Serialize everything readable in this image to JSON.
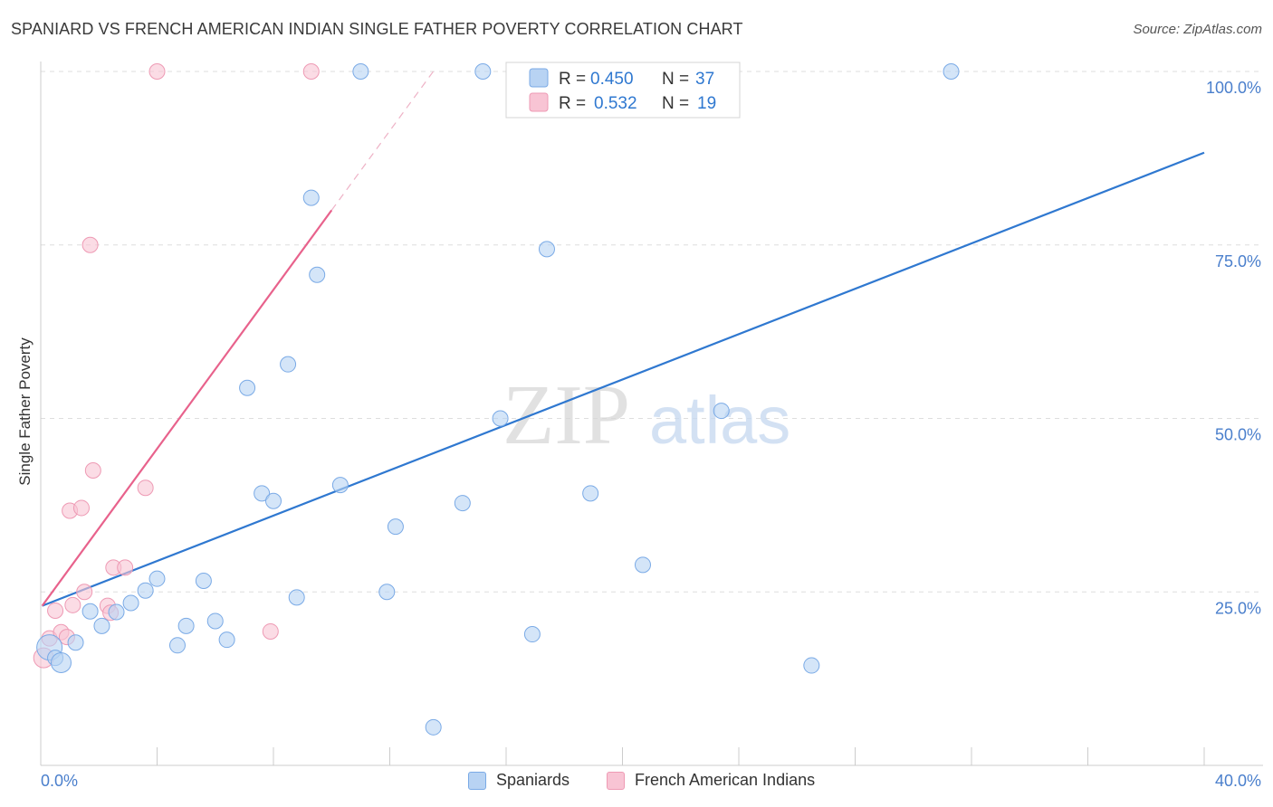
{
  "header": {
    "title": "SPANIARD VS FRENCH AMERICAN INDIAN SINGLE FATHER POVERTY CORRELATION CHART",
    "source": "Source: ZipAtlas.com"
  },
  "watermark": {
    "zip": "ZIP",
    "atlas": "atlas"
  },
  "colors": {
    "blue_fill": "#b8d3f3",
    "blue_stroke": "#7aaae6",
    "blue_line": "#2f78d0",
    "pink_fill": "#f8c4d4",
    "pink_stroke": "#ee9ab4",
    "pink_line": "#e8628c",
    "axis_text": "#4a7fcc",
    "grid": "#dddddd"
  },
  "legend_stats": [
    {
      "r_label": "R = ",
      "r_value": "0.450",
      "n_label": "N = ",
      "n_value": "37"
    },
    {
      "r_label": "R = ",
      "r_value": "0.532",
      "n_label": "N = ",
      "n_value": "19"
    }
  ],
  "chart_data": {
    "type": "scatter",
    "title": "SPANIARD VS FRENCH AMERICAN INDIAN SINGLE FATHER POVERTY CORRELATION CHART",
    "xlabel": "",
    "ylabel": "Single Father Poverty",
    "xlim": [
      0,
      40
    ],
    "ylim": [
      0,
      105
    ],
    "x_tick_labels": [
      "0.0%",
      "40.0%"
    ],
    "y_ticks": [
      25,
      50,
      75,
      100
    ],
    "y_tick_labels": [
      "25.0%",
      "50.0%",
      "75.0%",
      "100.0%"
    ],
    "grid": true,
    "legend_position": "top-center",
    "series": [
      {
        "name": "Spaniards",
        "color": "#b8d3f3",
        "points": [
          [
            0.3,
            17.0
          ],
          [
            0.5,
            15.5
          ],
          [
            0.7,
            14.8
          ],
          [
            1.2,
            17.7
          ],
          [
            1.7,
            22.2
          ],
          [
            2.1,
            20.1
          ],
          [
            2.6,
            22.1
          ],
          [
            3.1,
            23.4
          ],
          [
            3.6,
            25.2
          ],
          [
            4.0,
            26.9
          ],
          [
            4.7,
            17.3
          ],
          [
            5.0,
            20.1
          ],
          [
            5.6,
            26.6
          ],
          [
            6.0,
            20.8
          ],
          [
            6.4,
            18.1
          ],
          [
            7.1,
            54.4
          ],
          [
            7.6,
            39.2
          ],
          [
            8.0,
            38.1
          ],
          [
            8.5,
            57.8
          ],
          [
            8.8,
            24.2
          ],
          [
            9.3,
            81.8
          ],
          [
            9.5,
            70.7
          ],
          [
            10.3,
            40.4
          ],
          [
            11.0,
            100.0
          ],
          [
            11.9,
            25.0
          ],
          [
            12.2,
            34.4
          ],
          [
            13.5,
            5.5
          ],
          [
            14.5,
            37.8
          ],
          [
            15.2,
            100.0
          ],
          [
            15.8,
            50.0
          ],
          [
            16.9,
            18.9
          ],
          [
            17.4,
            74.4
          ],
          [
            18.9,
            39.2
          ],
          [
            20.7,
            28.9
          ],
          [
            23.4,
            51.1
          ],
          [
            26.5,
            14.4
          ],
          [
            31.3,
            100.0
          ]
        ],
        "trend": {
          "x": [
            0.05,
            40.0
          ],
          "y": [
            23.0,
            88.3
          ]
        }
      },
      {
        "name": "French American Indians",
        "color": "#f8c4d4",
        "points": [
          [
            0.1,
            15.5
          ],
          [
            0.3,
            18.3
          ],
          [
            0.5,
            22.3
          ],
          [
            0.7,
            19.2
          ],
          [
            0.9,
            18.5
          ],
          [
            1.0,
            36.7
          ],
          [
            1.1,
            23.1
          ],
          [
            1.4,
            37.1
          ],
          [
            1.5,
            25.0
          ],
          [
            1.7,
            75.0
          ],
          [
            1.8,
            42.5
          ],
          [
            2.3,
            23.0
          ],
          [
            2.4,
            22.0
          ],
          [
            2.5,
            28.5
          ],
          [
            2.9,
            28.5
          ],
          [
            3.6,
            40.0
          ],
          [
            4.0,
            100.0
          ],
          [
            7.9,
            19.3
          ],
          [
            9.3,
            100.0
          ]
        ],
        "trend": {
          "x": [
            0.05,
            10.0
          ],
          "y": [
            23.0,
            80.0
          ]
        },
        "trend_extension": {
          "x": [
            10.0,
            13.6
          ],
          "y": [
            80.0,
            100.6
          ]
        }
      }
    ]
  }
}
